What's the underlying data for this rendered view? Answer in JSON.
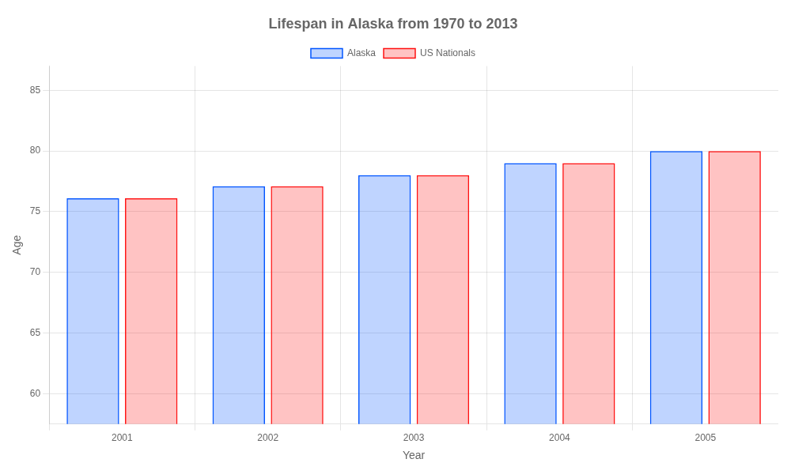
{
  "chart_data": {
    "type": "bar",
    "title": "Lifespan in Alaska from 1970 to 2013",
    "x_label": "Year",
    "y_label": "Age",
    "categories": [
      "2001",
      "2002",
      "2003",
      "2004",
      "2005"
    ],
    "series": [
      {
        "name": "Alaska",
        "color": "#0055ff",
        "values": [
          76.1,
          77.1,
          78.0,
          79.0,
          80.0
        ]
      },
      {
        "name": "US Nationals",
        "color": "#ff1111",
        "values": [
          76.1,
          77.1,
          78.0,
          79.0,
          80.0
        ]
      }
    ],
    "ylim": [
      57.5,
      87
    ],
    "yticks": [
      60,
      65,
      70,
      75,
      80,
      85
    ],
    "grid": true,
    "legend": "top"
  }
}
